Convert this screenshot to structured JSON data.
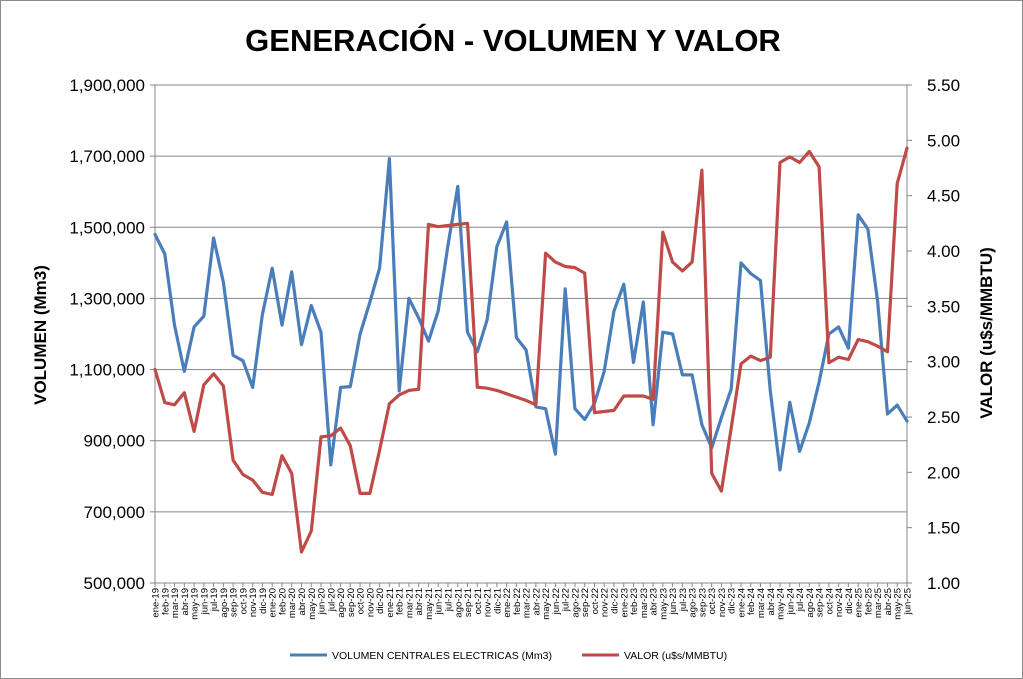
{
  "chart_data": {
    "type": "line",
    "title": "GENERACIÓN - VOLUMEN Y VALOR",
    "ylabel": "VOLUMEN (Mm3)",
    "y2label": "VALOR (u$s/MMBTU)",
    "ylim": [
      500000,
      1900000
    ],
    "y2lim": [
      1.0,
      5.5
    ],
    "yticks": [
      "500,000",
      "700,000",
      "900,000",
      "1,100,000",
      "1,300,000",
      "1,500,000",
      "1,700,000",
      "1,900,000"
    ],
    "y2ticks": [
      "1.00",
      "1.50",
      "2.00",
      "2.50",
      "3.00",
      "3.50",
      "4.00",
      "4.50",
      "5.00",
      "5.50"
    ],
    "grid": true,
    "legend_position": "bottom",
    "categories": [
      "ene-19",
      "feb-19",
      "mar-19",
      "abr-19",
      "may-19",
      "jun-19",
      "jul-19",
      "ago-19",
      "sep-19",
      "oct-19",
      "nov-19",
      "dic-19",
      "ene-20",
      "feb-20",
      "mar-20",
      "abr-20",
      "may-20",
      "jun-20",
      "jul-20",
      "ago-20",
      "sep-20",
      "oct-20",
      "nov-20",
      "dic-20",
      "ene-21",
      "feb-21",
      "mar-21",
      "abr-21",
      "may-21",
      "jun-21",
      "jul-21",
      "ago-21",
      "sep-21",
      "oct-21",
      "nov-21",
      "dic-21",
      "ene-22",
      "feb-22",
      "mar-22",
      "abr-22",
      "may-22",
      "jun-22",
      "jul-22",
      "ago-22",
      "sep-22",
      "oct-22",
      "nov-22",
      "dic-22",
      "ene-23",
      "feb-23",
      "mar-23",
      "abr-23",
      "may-23",
      "jun-23",
      "jul-23",
      "ago-23",
      "sep-23",
      "oct-23",
      "nov-23",
      "dic-23",
      "ene-24",
      "feb-24",
      "mar-24",
      "abr-24",
      "may-24",
      "jun-24",
      "jul-24",
      "ago-24",
      "sep-24",
      "oct-24",
      "nov-24",
      "dic-24",
      "ene-25",
      "feb-25",
      "mar-25",
      "abr-25",
      "may-25",
      "jun-25"
    ],
    "series": [
      {
        "name": "VOLUMEN CENTRALES ELECTRICAS (Mm3)",
        "axis": "left",
        "color": "#4a7ebb",
        "values": [
          1480000,
          1425000,
          1225000,
          1095000,
          1220000,
          1250000,
          1470000,
          1345000,
          1140000,
          1125000,
          1050000,
          1255000,
          1385000,
          1225000,
          1375000,
          1170000,
          1280000,
          1205000,
          832000,
          1050000,
          1052000,
          1200000,
          1290000,
          1385000,
          1693000,
          1040000,
          1300000,
          1245000,
          1180000,
          1265000,
          1450000,
          1615000,
          1205000,
          1150000,
          1240000,
          1445000,
          1515000,
          1190000,
          1155000,
          995000,
          990000,
          862000,
          1327000,
          990000,
          960000,
          1005000,
          1095000,
          1265000,
          1340000,
          1120000,
          1290000,
          945000,
          1205000,
          1200000,
          1085000,
          1085000,
          945000,
          880000,
          965000,
          1045000,
          1400000,
          1370000,
          1350000,
          1040000,
          818000,
          1008000,
          870000,
          950000,
          1065000,
          1200000,
          1220000,
          1160000,
          1535000,
          1495000,
          1290000,
          975000,
          1000000,
          955000
        ]
      },
      {
        "name": "VALOR (u$s/MMBTU)",
        "axis": "right",
        "color": "#be4b48",
        "values": [
          2.93,
          2.63,
          2.61,
          2.72,
          2.37,
          2.79,
          2.89,
          2.78,
          2.11,
          1.98,
          1.93,
          1.82,
          1.8,
          2.15,
          1.99,
          1.28,
          1.47,
          2.32,
          2.33,
          2.4,
          2.24,
          1.81,
          1.81,
          2.2,
          2.62,
          2.7,
          2.74,
          2.75,
          4.24,
          4.22,
          4.23,
          4.24,
          4.25,
          2.77,
          2.76,
          2.74,
          2.71,
          2.68,
          2.65,
          2.61,
          3.98,
          3.9,
          3.86,
          3.85,
          3.8,
          2.54,
          2.55,
          2.56,
          2.69,
          2.69,
          2.69,
          2.66,
          4.17,
          3.9,
          3.82,
          3.9,
          4.73,
          1.99,
          1.83,
          2.4,
          2.98,
          3.05,
          3.01,
          3.04,
          4.8,
          4.85,
          4.8,
          4.9,
          4.76,
          2.99,
          3.04,
          3.02,
          3.2,
          3.18,
          3.14,
          3.09,
          4.61,
          4.93
        ]
      }
    ]
  }
}
